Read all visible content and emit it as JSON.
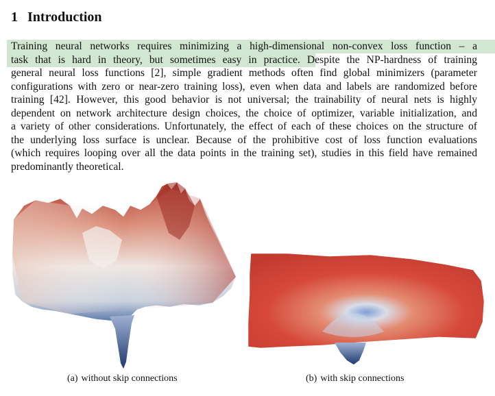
{
  "section": {
    "number": "1",
    "title": "Introduction"
  },
  "paragraph": {
    "lines": [
      "Training neural networks requires minimizing a high-dimensional non-convex loss function – a",
      "task that is hard in theory, but sometimes easy in practice.  Despite the NP-hardness of training",
      "general neural loss functions [2], simple gradient methods often find global minimizers (parameter",
      "configurations with zero or near-zero training loss), even when data and labels are randomized before",
      "training [42]. However, this good behavior is not universal; the trainability of neural nets is highly",
      "dependent on network architecture design choices, the choice of optimizer, variable initialization, and",
      "a variety of other considerations. Unfortunately, the effect of each of these choices on the structure of",
      "the underlying loss surface is unclear. Because of the prohibitive cost of loss function evaluations",
      "(which requires looping over all the data points in the training set), studies in this field have remained",
      "predominantly theoretical."
    ]
  },
  "figure": {
    "captions": [
      {
        "tag": "(a)",
        "text": "without skip connections"
      },
      {
        "tag": "(b)",
        "text": "with skip connections"
      }
    ]
  },
  "colors": {
    "highlight": "#cfe6cf",
    "surface_red": "#c0392b",
    "surface_white": "#f2ece8",
    "surface_blue": "#2c4a7c"
  }
}
